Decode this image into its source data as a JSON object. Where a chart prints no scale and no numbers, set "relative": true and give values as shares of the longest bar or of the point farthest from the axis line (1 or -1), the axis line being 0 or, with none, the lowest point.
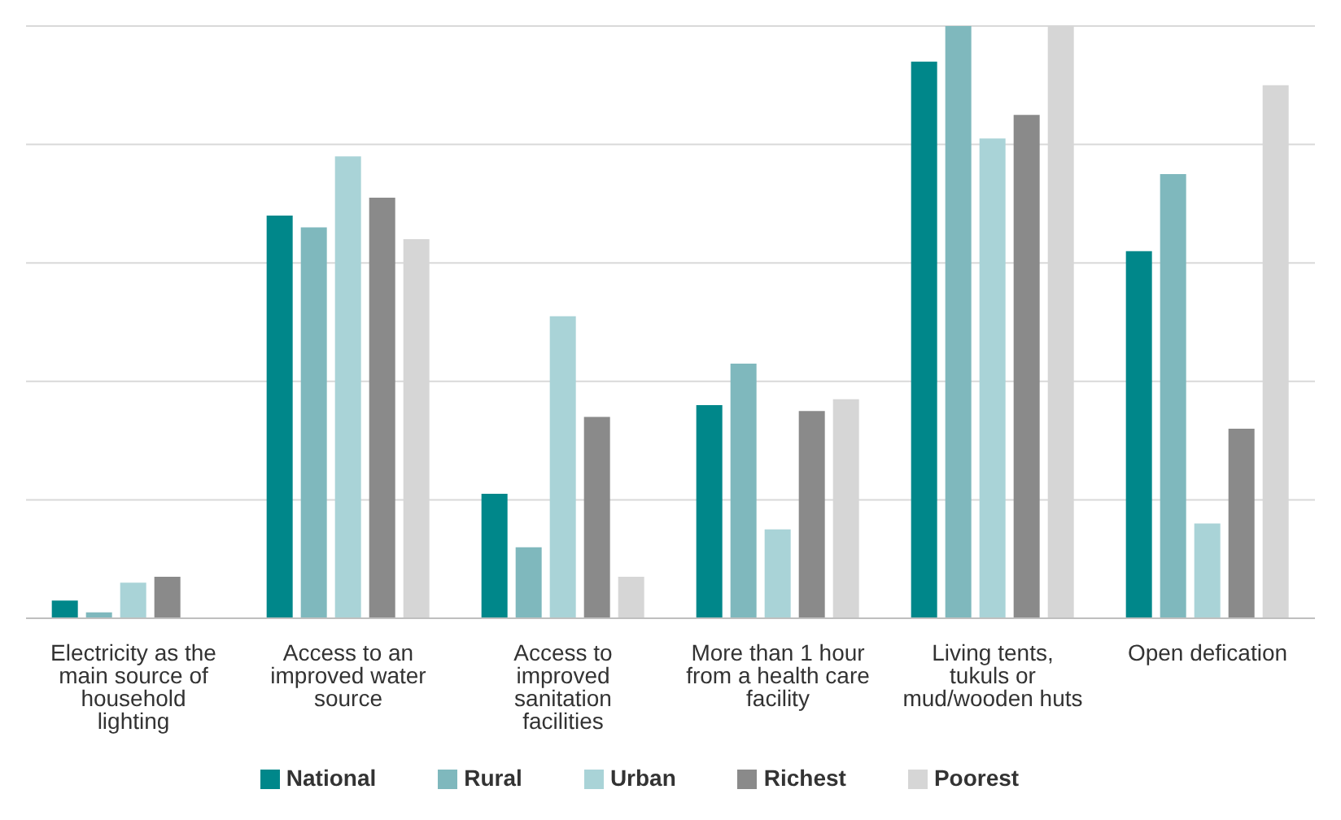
{
  "chart_data": {
    "type": "bar",
    "relative": true,
    "grid": "y",
    "legend": "bottom",
    "categories": [
      "Electricity as the main source of household lighting",
      "Access to an improved water source",
      "Access to improved sanitation facilities",
      "More than 1 hour from a health care facility",
      "Living tents, tukuls or mud/wooden huts",
      "Open defication"
    ],
    "series": [
      {
        "name": "National",
        "color": "#00878a",
        "values": [
          0.03,
          0.68,
          0.21,
          0.36,
          0.94,
          0.62
        ]
      },
      {
        "name": "Rural",
        "color": "#7fb8bd",
        "values": [
          0.01,
          0.66,
          0.12,
          0.43,
          1.0,
          0.75
        ]
      },
      {
        "name": "Urban",
        "color": "#a9d3d7",
        "values": [
          0.06,
          0.78,
          0.51,
          0.15,
          0.81,
          0.16
        ]
      },
      {
        "name": "Richest",
        "color": "#8a8a8a",
        "values": [
          0.07,
          0.71,
          0.34,
          0.35,
          0.85,
          0.32
        ]
      },
      {
        "name": "Poorest",
        "color": "#d6d6d6",
        "values": [
          null,
          0.64,
          0.07,
          0.37,
          1.0,
          0.9
        ]
      }
    ]
  }
}
